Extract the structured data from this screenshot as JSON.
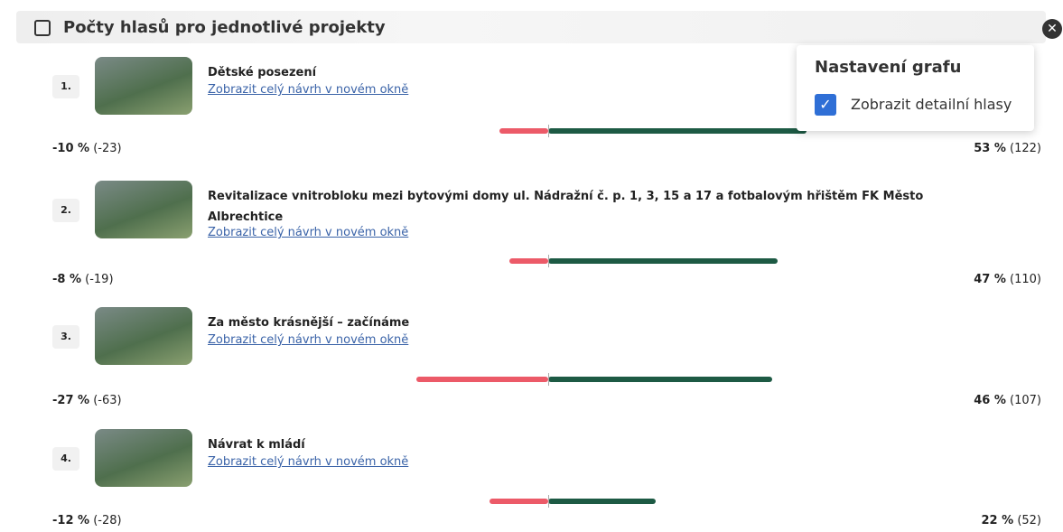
{
  "header": {
    "title": "Počty hlasů pro jednotlivé projekty"
  },
  "settings": {
    "title": "Nastavení grafu",
    "option": "Zobrazit detailní hlasy",
    "checked": true
  },
  "projects": [
    {
      "rank": "1.",
      "title": "Dětské posezení",
      "link": "Zobrazit celý návrh v novém okně",
      "negative": {
        "value": -10,
        "label": "-10 %"
      },
      "negative_votes": "(-23)",
      "positive": {
        "value": 53,
        "label": "53 %"
      },
      "positive_votes": "(122)"
    },
    {
      "rank": "2.",
      "title": "Revitalizace vnitrobloku mezi bytovými domy ul. Nádražní č. p. 1, 3, 15 a 17 a fotbalovým hřištěm FK Město Albrechtice",
      "link": "Zobrazit celý návrh v novém okně",
      "negative": {
        "value": -8,
        "label": "-8 %"
      },
      "negative_votes": "(-19)",
      "positive": {
        "value": 47,
        "label": "47 %"
      },
      "positive_votes": "(110)"
    },
    {
      "rank": "3.",
      "title": "Za město krásnější – začínáme",
      "link": "Zobrazit celý návrh v novém okně",
      "negative": {
        "value": -27,
        "label": "-27 %"
      },
      "negative_votes": "(-63)",
      "positive": {
        "value": 46,
        "label": "46 %"
      },
      "positive_votes": "(107)"
    },
    {
      "rank": "4.",
      "title": "Návrat k mládí",
      "link": "Zobrazit celý návrh v novém okně",
      "negative": {
        "value": -12,
        "label": "-12 %"
      },
      "negative_votes": "(-28)",
      "positive": {
        "value": 22,
        "label": "22 %"
      },
      "positive_votes": "(52)"
    }
  ]
}
